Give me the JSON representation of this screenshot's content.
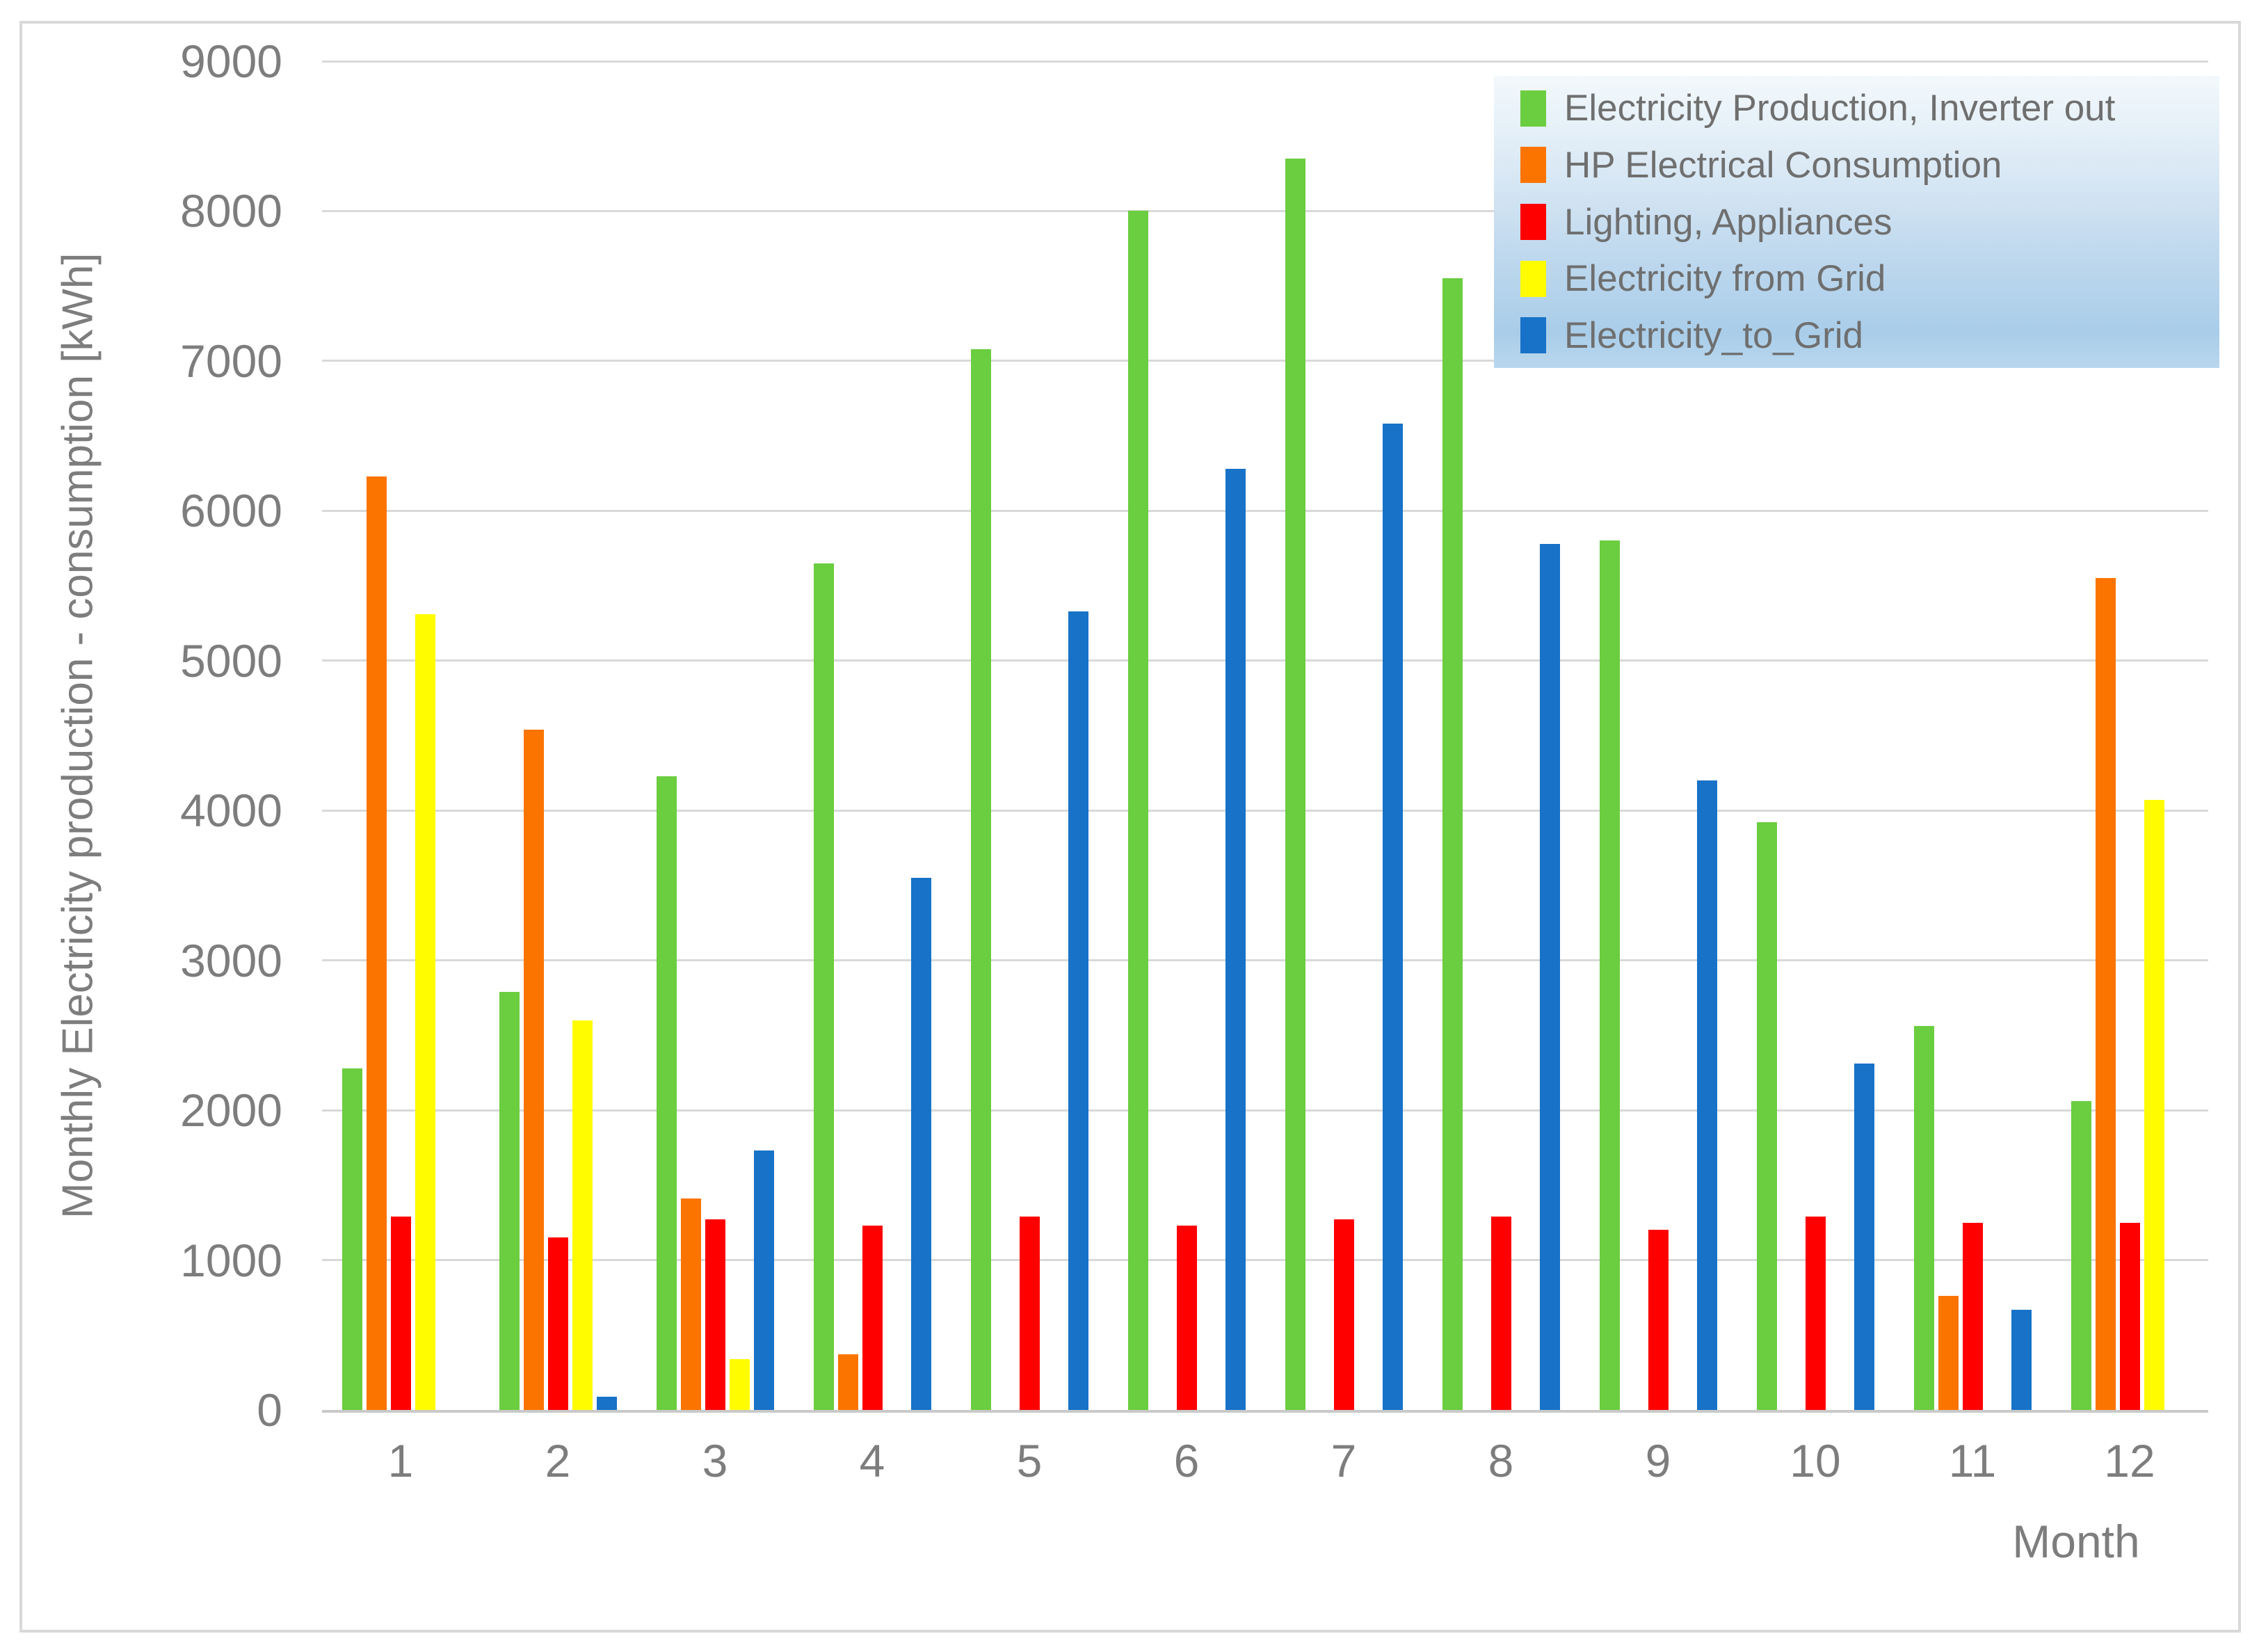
{
  "chart_data": {
    "type": "bar",
    "title": "",
    "xlabel": "Month",
    "ylabel": "Monthly Electricity production - consumption [kWh]",
    "ylim": [
      0,
      9000
    ],
    "ytick_step": 1000,
    "yticks": [
      0,
      1000,
      2000,
      3000,
      4000,
      5000,
      6000,
      7000,
      8000,
      9000
    ],
    "grid": true,
    "legend_position": "top-right",
    "categories": [
      "1",
      "2",
      "3",
      "4",
      "5",
      "6",
      "7",
      "8",
      "9",
      "10",
      "11",
      "12"
    ],
    "series": [
      {
        "name": "Electricity Production, Inverter out",
        "color": "#6BCD40",
        "values": [
          2280,
          2790,
          4230,
          5650,
          7080,
          8000,
          8350,
          7550,
          5800,
          3920,
          2560,
          2060
        ]
      },
      {
        "name": "HP Electrical Consumption",
        "color": "#FC7400",
        "values": [
          6230,
          4540,
          1410,
          370,
          0,
          0,
          0,
          0,
          0,
          0,
          760,
          5550
        ]
      },
      {
        "name": "Lighting, Appliances",
        "color": "#FE0000",
        "values": [
          1290,
          1150,
          1270,
          1230,
          1290,
          1230,
          1270,
          1290,
          1200,
          1290,
          1250,
          1250
        ]
      },
      {
        "name": "Electricity from Grid",
        "color": "#FFFC00",
        "values": [
          5310,
          2600,
          340,
          0,
          0,
          0,
          0,
          0,
          0,
          0,
          0,
          4070
        ]
      },
      {
        "name": "Electricity_to_Grid",
        "color": "#1772C8",
        "values": [
          0,
          90,
          1730,
          3550,
          5330,
          6280,
          6580,
          5780,
          4200,
          2310,
          670,
          0
        ]
      }
    ],
    "colors": {
      "axis_text": "#7D7D7D",
      "legend_text": "#6F6F6F",
      "gridline": "#D9D9D9",
      "axis_line": "#C9C9C9",
      "chart_border": "#D9D9D9",
      "legend_gradient_top": "#F3F9FC",
      "legend_gradient_bottom": "#A9CDE9"
    }
  }
}
